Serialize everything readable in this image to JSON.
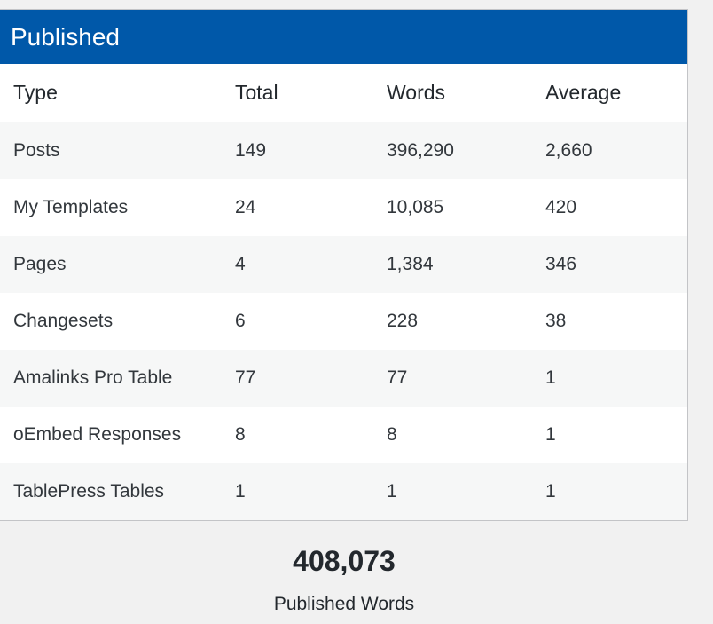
{
  "panel": {
    "title": "Published"
  },
  "table": {
    "headers": {
      "type": "Type",
      "total": "Total",
      "words": "Words",
      "average": "Average"
    },
    "rows": [
      {
        "type": "Posts",
        "total": "149",
        "words": "396,290",
        "average": "2,660"
      },
      {
        "type": "My Templates",
        "total": "24",
        "words": "10,085",
        "average": "420"
      },
      {
        "type": "Pages",
        "total": "4",
        "words": "1,384",
        "average": "346"
      },
      {
        "type": "Changesets",
        "total": "6",
        "words": "228",
        "average": "38"
      },
      {
        "type": "Amalinks Pro Table",
        "total": "77",
        "words": "77",
        "average": "1"
      },
      {
        "type": "oEmbed Responses",
        "total": "8",
        "words": "8",
        "average": "1"
      },
      {
        "type": "TablePress Tables",
        "total": "1",
        "words": "1",
        "average": "1"
      }
    ]
  },
  "summary": {
    "value": "408,073",
    "label": "Published Words"
  },
  "colors": {
    "header_bg": "#0058a9",
    "page_bg": "#f1f1f1",
    "stripe": "#f6f7f7"
  }
}
